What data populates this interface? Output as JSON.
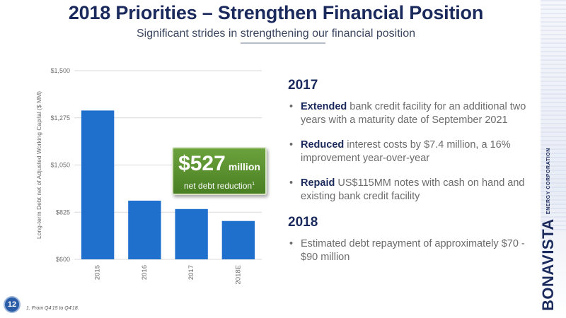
{
  "header": {
    "title": "2018 Priorities – Strengthen Financial Position",
    "subtitle": "Significant strides in strengthening our financial position"
  },
  "chart_data": {
    "type": "bar",
    "categories": [
      "2015",
      "2016",
      "2017",
      "2018E"
    ],
    "values": [
      1310,
      880,
      840,
      783
    ],
    "ylabel": "Long-term Debt net of Adjusted Working Capital ($ MM)",
    "ylim": [
      600,
      1500
    ],
    "yticks": [
      600,
      825,
      1050,
      1275,
      1500
    ],
    "ytick_labels": [
      "$600",
      "$825",
      "$1,050",
      "$1,275",
      "$1,500"
    ],
    "grid": true,
    "bar_color": "#1f6fcc"
  },
  "callout": {
    "amount": "$527",
    "unit": "million",
    "text": "net debt reduction",
    "footnote_mark": "1"
  },
  "sections": [
    {
      "year": "2017",
      "bullets": [
        {
          "lead": "Extended",
          "text": " bank credit facility for an additional two years with a maturity date of September 2021"
        },
        {
          "lead": "Reduced",
          "text": " interest costs by $7.4 million, a 16% improvement year-over-year"
        },
        {
          "lead": "Repaid",
          "text": " US$115MM notes with cash on hand and existing bank credit facility"
        }
      ]
    },
    {
      "year": "2018",
      "bullets": [
        {
          "lead": "",
          "text": "Estimated debt repayment of approximately $70 - $90 million"
        }
      ]
    }
  ],
  "footer": {
    "page_number": "12",
    "footnote": "1. From Q4'15 to Q4'18."
  },
  "brand": {
    "name": "BONAVISTA",
    "sub": "ENERGY CORPORATION"
  }
}
